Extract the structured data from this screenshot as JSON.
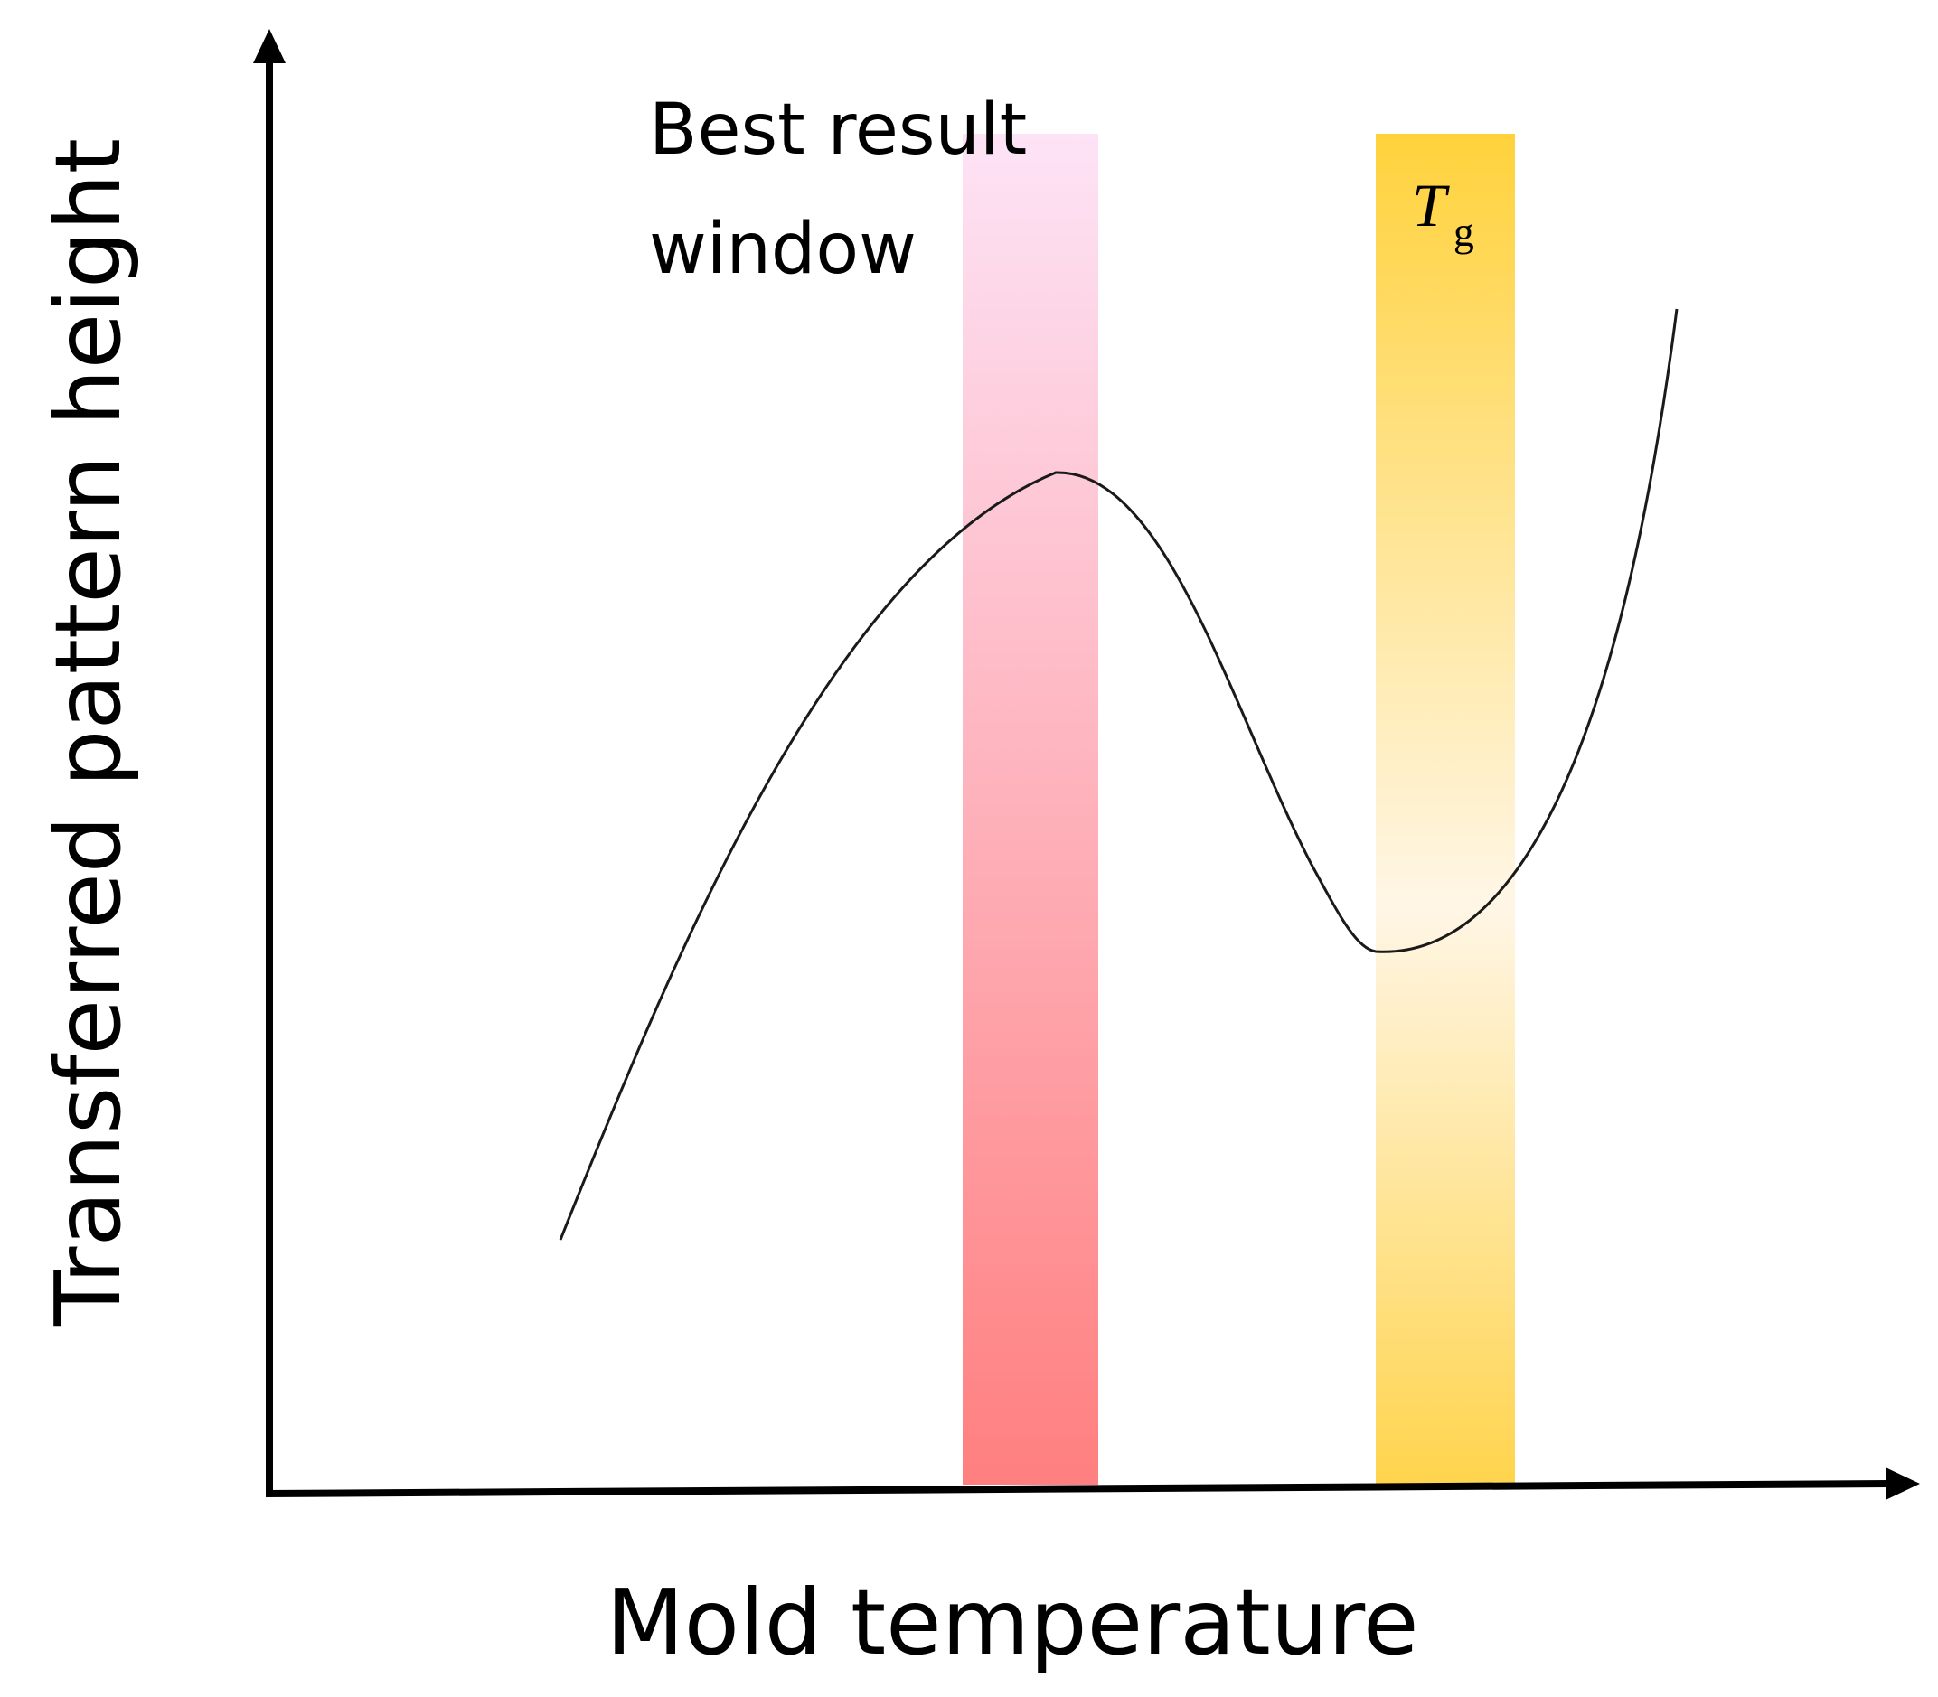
{
  "diagram": {
    "y_axis_label": "Transferred pattern height",
    "x_axis_label": "Mold temperature",
    "window_label_line1": "Best result",
    "window_label_line2": "window",
    "tg_label_main": "T",
    "tg_label_sub": "g",
    "colors": {
      "axis": "#000000",
      "curve": "#1a1a1a",
      "best_window_top": "#fde3f6",
      "best_window_bottom": "#ff7f7f",
      "tg_band_top": "#ffd23c",
      "tg_band_mid": "#fff6e6",
      "tg_band_bottom": "#ffd44d"
    }
  }
}
